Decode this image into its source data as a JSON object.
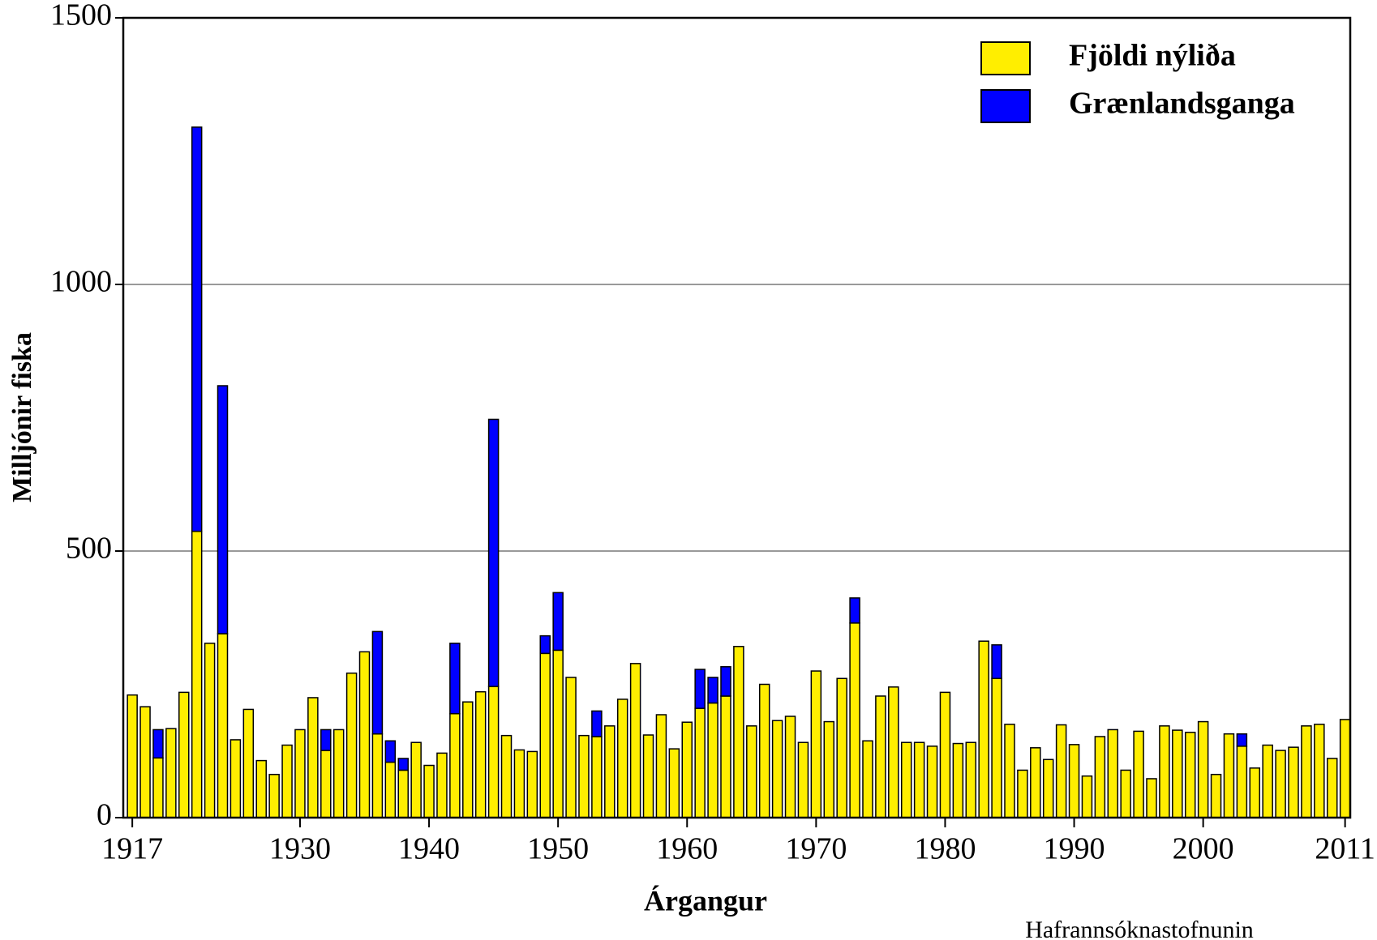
{
  "chart_data": {
    "type": "bar",
    "stacked": true,
    "xlabel": "Árgangur",
    "ylabel": "Milljónir fiska",
    "annotation": "Hafrannsóknastofnunin",
    "legend": "upper right",
    "grid": true,
    "xlim": [
      1916.3,
      2011.4
    ],
    "ylim": [
      0,
      1500
    ],
    "xticks": [
      1917,
      1930,
      1940,
      1950,
      1960,
      1970,
      1980,
      1990,
      2000,
      2011
    ],
    "yticks": [
      0,
      500,
      1000,
      1500
    ],
    "x": [
      1917,
      1918,
      1919,
      1920,
      1921,
      1922,
      1923,
      1924,
      1925,
      1926,
      1927,
      1928,
      1929,
      1930,
      1931,
      1932,
      1933,
      1934,
      1935,
      1936,
      1937,
      1938,
      1939,
      1940,
      1941,
      1942,
      1943,
      1944,
      1945,
      1946,
      1947,
      1948,
      1949,
      1950,
      1951,
      1952,
      1953,
      1954,
      1955,
      1956,
      1957,
      1958,
      1959,
      1960,
      1961,
      1962,
      1963,
      1964,
      1965,
      1966,
      1967,
      1968,
      1969,
      1970,
      1971,
      1972,
      1973,
      1974,
      1975,
      1976,
      1977,
      1978,
      1979,
      1980,
      1981,
      1982,
      1983,
      1984,
      1985,
      1986,
      1987,
      1988,
      1989,
      1990,
      1991,
      1992,
      1993,
      1994,
      1995,
      1996,
      1997,
      1998,
      1999,
      2000,
      2001,
      2002,
      2003,
      2004,
      2005,
      2006,
      2007,
      2008,
      2009,
      2010,
      2011
    ],
    "series": [
      {
        "name": "Fjöldi nýliða",
        "color": "#ffee00",
        "values": [
          230,
          208,
          112,
          167,
          235,
          537,
          327,
          345,
          146,
          203,
          107,
          81,
          136,
          165,
          225,
          126,
          165,
          271,
          311,
          157,
          104,
          89,
          141,
          98,
          121,
          195,
          217,
          236,
          246,
          154,
          127,
          124,
          308,
          314,
          263,
          154,
          152,
          172,
          222,
          289,
          155,
          193,
          129,
          179,
          205,
          215,
          228,
          321,
          172,
          250,
          182,
          190,
          141,
          275,
          180,
          261,
          365,
          144,
          228,
          245,
          141,
          141,
          134,
          235,
          139,
          141,
          331,
          261,
          175,
          89,
          131,
          109,
          174,
          137,
          78,
          152,
          165,
          89,
          162,
          73,
          172,
          164,
          160,
          180,
          81,
          157,
          134,
          93,
          136,
          126,
          132,
          172,
          175,
          111,
          184
        ]
      },
      {
        "name": "Grænlandsganga",
        "color": "#0000ff",
        "values": [
          0,
          0,
          53,
          0,
          0,
          758,
          0,
          465,
          0,
          0,
          0,
          0,
          0,
          0,
          0,
          39,
          0,
          0,
          0,
          192,
          40,
          22,
          0,
          0,
          0,
          132,
          0,
          0,
          501,
          0,
          0,
          0,
          33,
          108,
          0,
          0,
          48,
          0,
          0,
          0,
          0,
          0,
          0,
          0,
          73,
          48,
          55,
          0,
          0,
          0,
          0,
          0,
          0,
          0,
          0,
          0,
          47,
          0,
          0,
          0,
          0,
          0,
          0,
          0,
          0,
          0,
          0,
          63,
          0,
          0,
          0,
          0,
          0,
          0,
          0,
          0,
          0,
          0,
          0,
          0,
          0,
          0,
          0,
          0,
          0,
          0,
          23,
          0,
          0,
          0,
          0,
          0,
          0,
          0,
          0
        ]
      }
    ]
  }
}
